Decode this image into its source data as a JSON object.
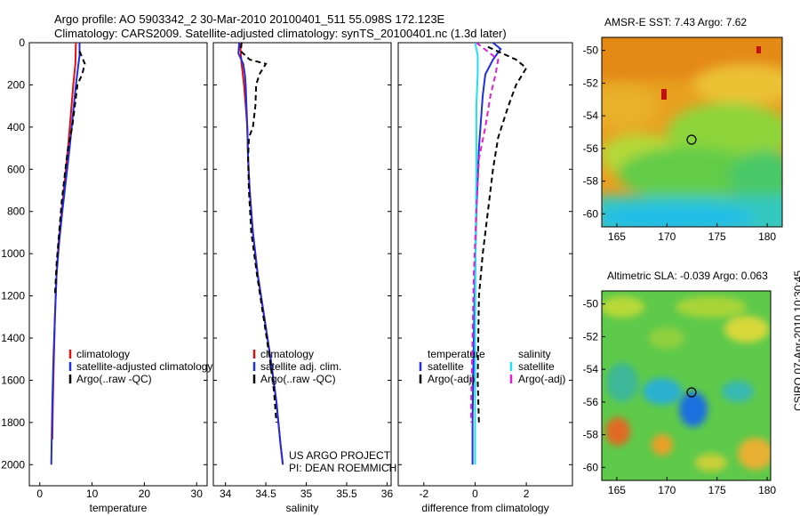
{
  "header": {
    "title_line1": "Argo profile: AO 5903342_2 30-Mar-2010 20100401_511 55.098S 172.123E",
    "title_line2": "Climatology: CARS2009. Satellite-adjusted climatology: synTS_20100401.nc (1.3d later)"
  },
  "maps": {
    "sst_title": "AMSR-E SST: 7.43 Argo: 7.62",
    "sla_title": "Altimetric SLA: -0.039 Argo: 0.063",
    "lat_ticks": [
      -50,
      -52,
      -54,
      -56,
      -58,
      -60
    ],
    "lon_ticks": [
      165,
      170,
      175,
      180
    ],
    "lat_range": [
      -60.8,
      -49.2
    ],
    "lon_range": [
      163.5,
      181.5
    ],
    "float_position": {
      "lon": 172.123,
      "lat": -55.098
    },
    "colors": {
      "sst_high": "#e0891a",
      "sst_mid": "#7cd43a",
      "sst_low": "#22bde8",
      "sla_mid": "#5ec94a"
    }
  },
  "credits": {
    "line1": "US ARGO PROJECT",
    "line2": "PI: DEAN ROEMMICH",
    "stamp": "CSIRO 07-Apr-2010 10:30:45"
  },
  "chart_data": [
    {
      "type": "line",
      "xlabel": "temperature",
      "ylabel": "",
      "xlim": [
        -2,
        32
      ],
      "ylim": [
        2100,
        0
      ],
      "xticks": [
        0,
        10,
        20,
        30
      ],
      "yticks": [
        0,
        200,
        400,
        600,
        800,
        1000,
        1200,
        1400,
        1600,
        1800,
        2000
      ],
      "legend": {
        "position": "lower-right",
        "labels": [
          "climatology",
          "satellite-adjusted climatology",
          "Argo(..raw -QC)"
        ]
      },
      "series": [
        {
          "name": "climatology",
          "color": "#e01010",
          "dash": "solid",
          "points": [
            [
              6.9,
              0
            ],
            [
              6.8,
              100
            ],
            [
              6.4,
              200
            ],
            [
              5.9,
              350
            ],
            [
              5.4,
              500
            ],
            [
              4.8,
              650
            ],
            [
              4.2,
              800
            ],
            [
              3.6,
              950
            ],
            [
              3.2,
              1100
            ],
            [
              2.9,
              1300
            ],
            [
              2.7,
              1500
            ],
            [
              2.5,
              1700
            ],
            [
              2.4,
              1880
            ]
          ]
        },
        {
          "name": "satellite-adjusted climatology",
          "color": "#1f2ee0",
          "dash": "solid",
          "points": [
            [
              7.6,
              0
            ],
            [
              7.6,
              60
            ],
            [
              7.4,
              100
            ],
            [
              6.9,
              200
            ],
            [
              6.3,
              350
            ],
            [
              5.7,
              500
            ],
            [
              5.0,
              650
            ],
            [
              4.3,
              800
            ],
            [
              3.7,
              950
            ],
            [
              3.2,
              1100
            ],
            [
              2.9,
              1300
            ],
            [
              2.6,
              1500
            ],
            [
              2.4,
              1700
            ],
            [
              2.3,
              1850
            ],
            [
              2.2,
              2000
            ]
          ]
        },
        {
          "name": "Argo(..raw -QC)",
          "color": "#000000",
          "dash": "dashed",
          "points": [
            [
              7.6,
              40
            ],
            [
              8.6,
              100
            ],
            [
              8.1,
              150
            ],
            [
              7.2,
              200
            ],
            [
              6.7,
              300
            ],
            [
              6.2,
              400
            ],
            [
              5.4,
              500
            ],
            [
              4.8,
              620
            ],
            [
              4.2,
              750
            ],
            [
              3.7,
              900
            ],
            [
              3.2,
              1050
            ],
            [
              2.9,
              1200
            ]
          ]
        }
      ]
    },
    {
      "type": "line",
      "xlabel": "salinity",
      "ylabel": "",
      "xlim": [
        33.85,
        36.05
      ],
      "ylim": [
        2100,
        0
      ],
      "xticks": [
        34,
        34.5,
        35,
        35.5,
        36
      ],
      "legend": {
        "position": "lower-right",
        "labels": [
          "climatology",
          "satellite adj. clim.",
          "Argo(..raw -QC)"
        ]
      },
      "series": [
        {
          "name": "climatology",
          "color": "#e01010",
          "dash": "solid",
          "points": [
            [
              34.18,
              0
            ],
            [
              34.2,
              100
            ],
            [
              34.23,
              200
            ],
            [
              34.25,
              300
            ],
            [
              34.27,
              400
            ],
            [
              34.28,
              550
            ],
            [
              34.3,
              700
            ],
            [
              34.34,
              900
            ],
            [
              34.4,
              1100
            ],
            [
              34.48,
              1300
            ],
            [
              34.56,
              1500
            ],
            [
              34.63,
              1700
            ],
            [
              34.68,
              1900
            ],
            [
              34.71,
              2000
            ]
          ]
        },
        {
          "name": "satellite adj. clim.",
          "color": "#1f2ee0",
          "dash": "solid",
          "points": [
            [
              34.17,
              0
            ],
            [
              34.16,
              50
            ],
            [
              34.22,
              100
            ],
            [
              34.24,
              150
            ],
            [
              34.25,
              200
            ],
            [
              34.26,
              300
            ],
            [
              34.27,
              400
            ],
            [
              34.28,
              550
            ],
            [
              34.3,
              700
            ],
            [
              34.34,
              900
            ],
            [
              34.4,
              1100
            ],
            [
              34.48,
              1300
            ],
            [
              34.56,
              1500
            ],
            [
              34.63,
              1700
            ],
            [
              34.68,
              1900
            ],
            [
              34.71,
              2000
            ]
          ]
        },
        {
          "name": "Argo(..raw -QC)",
          "color": "#000000",
          "dash": "dashed",
          "points": [
            [
              34.2,
              0
            ],
            [
              34.19,
              40
            ],
            [
              34.3,
              80
            ],
            [
              34.5,
              100
            ],
            [
              34.42,
              150
            ],
            [
              34.38,
              200
            ],
            [
              34.37,
              300
            ],
            [
              34.34,
              400
            ],
            [
              34.29,
              450
            ],
            [
              34.28,
              550
            ],
            [
              34.29,
              700
            ],
            [
              34.32,
              900
            ],
            [
              34.39,
              1100
            ],
            [
              34.47,
              1300
            ],
            [
              34.55,
              1500
            ],
            [
              34.6,
              1650
            ],
            [
              34.63,
              1800
            ]
          ]
        }
      ]
    },
    {
      "type": "line",
      "xlabel": "difference from climatology",
      "ylabel": "",
      "xlim": [
        -3,
        3.8
      ],
      "ylim": [
        2100,
        0
      ],
      "xticks": [
        -2,
        0,
        2
      ],
      "legend": {
        "position": "lower-center",
        "col1_title": "temperature",
        "col2_title": "salinity",
        "labels": [
          "satellite",
          "Argo(-adj)",
          "satellite",
          "Argo(-adj)"
        ]
      },
      "series": [
        {
          "name": "temperature satellite",
          "color": "#1f2ee0",
          "dash": "solid",
          "points": [
            [
              0.7,
              0
            ],
            [
              1.0,
              30
            ],
            [
              0.7,
              80
            ],
            [
              0.4,
              150
            ],
            [
              0.3,
              250
            ],
            [
              0.15,
              500
            ],
            [
              0.05,
              800
            ],
            [
              0,
              1100
            ],
            [
              -0.05,
              1400
            ],
            [
              -0.1,
              1800
            ],
            [
              -0.1,
              2000
            ]
          ]
        },
        {
          "name": "temperature Argo(-adj)",
          "color": "#000000",
          "dash": "dashed",
          "points": [
            [
              0.5,
              20
            ],
            [
              1.6,
              80
            ],
            [
              2.0,
              120
            ],
            [
              1.6,
              200
            ],
            [
              1.3,
              300
            ],
            [
              0.9,
              450
            ],
            [
              0.7,
              600
            ],
            [
              0.5,
              800
            ],
            [
              0.3,
              1000
            ],
            [
              0.15,
              1200
            ],
            [
              0.1,
              1600
            ],
            [
              0.15,
              1800
            ]
          ]
        },
        {
          "name": "salinity satellite",
          "color": "#20e0ee",
          "dash": "solid",
          "points": [
            [
              0,
              0
            ],
            [
              0.1,
              60
            ],
            [
              0.1,
              150
            ],
            [
              0.05,
              300
            ],
            [
              0.05,
              600
            ],
            [
              0.02,
              1000
            ],
            [
              0,
              1500
            ],
            [
              0,
              2000
            ]
          ]
        },
        {
          "name": "salinity Argo(-adj)",
          "color": "#e020d0",
          "dash": "dashed",
          "points": [
            [
              0.05,
              0
            ],
            [
              0.9,
              80
            ],
            [
              0.8,
              150
            ],
            [
              0.6,
              250
            ],
            [
              0.4,
              400
            ],
            [
              0.15,
              550
            ],
            [
              0.05,
              800
            ],
            [
              -0.05,
              1100
            ],
            [
              -0.1,
              1400
            ],
            [
              -0.15,
              1700
            ],
            [
              -0.15,
              1800
            ]
          ]
        }
      ]
    }
  ]
}
